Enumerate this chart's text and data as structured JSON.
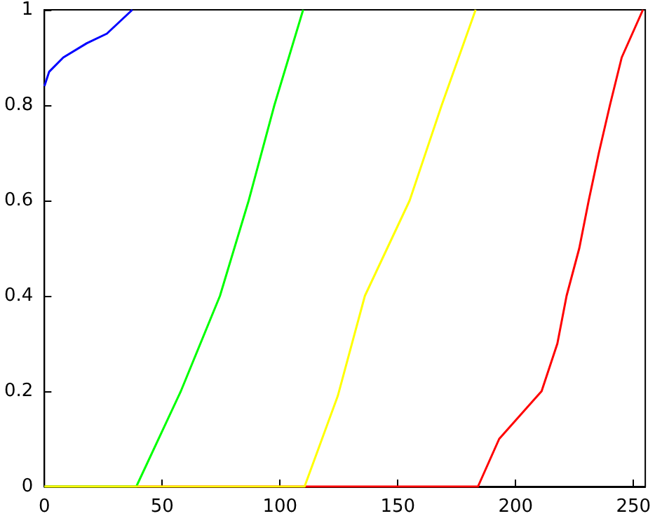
{
  "chart_data": {
    "type": "line",
    "xlim": [
      0,
      255
    ],
    "xticks": [
      0,
      50,
      100,
      150,
      200,
      250
    ],
    "ylim": [
      0,
      1
    ],
    "yticks": [
      0,
      0.2,
      0.4,
      0.6,
      0.8,
      1
    ],
    "grid": false,
    "marker": "none",
    "line_style": "solid",
    "series": [
      {
        "color": "#ff0000",
        "x": [
          0,
          184,
          193,
          211,
          217.7,
          221.6,
          227,
          231,
          235.3,
          240,
          245,
          254
        ],
        "values": [
          0,
          0,
          0.1,
          0.2,
          0.3,
          0.4,
          0.5,
          0.6,
          0.7,
          0.8,
          0.9,
          1
        ]
      },
      {
        "color": "#00ff00",
        "x": [
          0,
          39,
          57.9,
          74.5,
          86.7,
          97.6,
          109.8
        ],
        "values": [
          0,
          0,
          0.2,
          0.4,
          0.6,
          0.8,
          1
        ]
      },
      {
        "color": "#ffff00",
        "x": [
          0,
          110.4,
          124.5,
          136,
          155,
          168.6,
          183
        ],
        "values": [
          0,
          0,
          0.19,
          0.4,
          0.6,
          0.8,
          1
        ]
      },
      {
        "color": "#0000ff",
        "x": [
          0,
          2,
          8,
          18,
          26.5,
          37.3
        ],
        "values": [
          0.84,
          0.87,
          0.9,
          0.93,
          0.95,
          1
        ]
      }
    ]
  }
}
